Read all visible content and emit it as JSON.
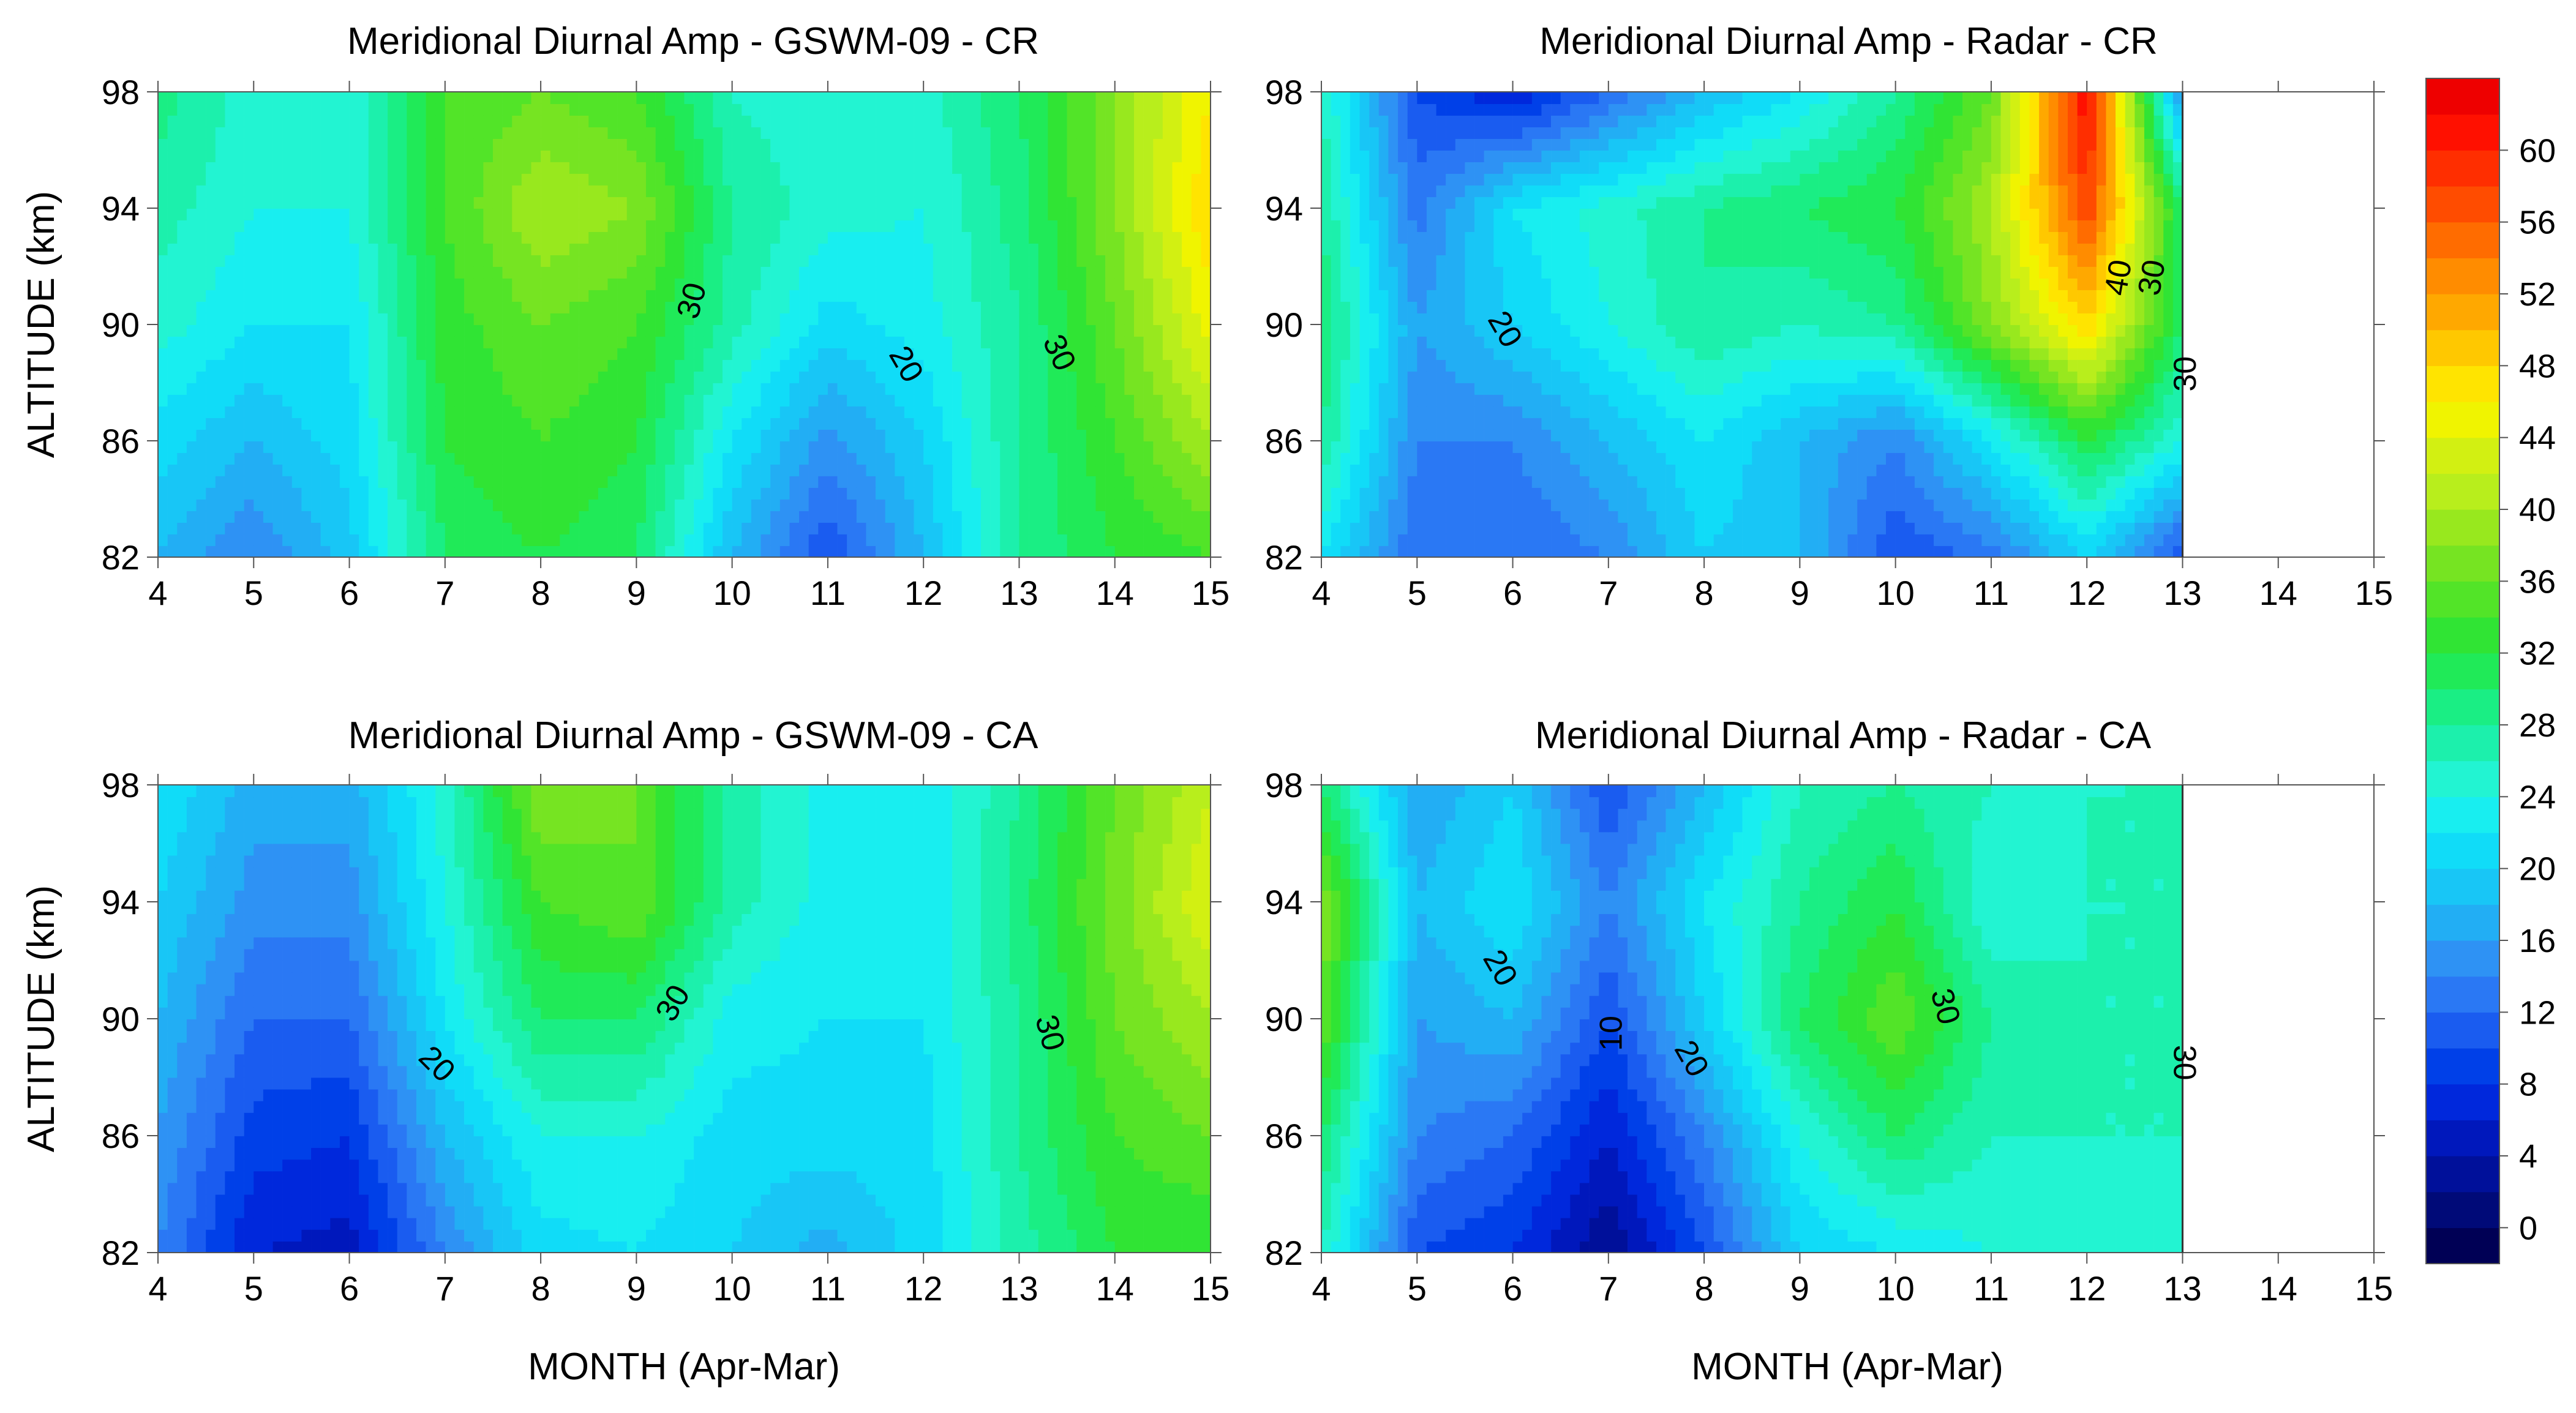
{
  "chart_data": [
    {
      "type": "filled-contour",
      "title": "Meridional Diurnal Amp - GSWM-09 - CR",
      "ylabel": "ALTITUDE (km)",
      "xlabel": "",
      "x_ticks": [
        "4",
        "5",
        "6",
        "7",
        "8",
        "9",
        "10",
        "11",
        "12",
        "13",
        "14",
        "15"
      ],
      "y_ticks": [
        "82",
        "86",
        "90",
        "94",
        "98"
      ],
      "xlim": [
        4,
        15
      ],
      "ylim": [
        82,
        98
      ],
      "x": [
        4,
        5,
        6,
        7,
        8,
        9,
        10,
        11,
        12,
        13,
        14,
        15
      ],
      "y": [
        82,
        86,
        90,
        94,
        98
      ],
      "z": [
        [
          18,
          14,
          19,
          30,
          32,
          30,
          18,
          10,
          18,
          28,
          32,
          34
        ],
        [
          21,
          18,
          21,
          32,
          34,
          32,
          22,
          15,
          20,
          28,
          34,
          40
        ],
        [
          25,
          22,
          22,
          33,
          36,
          34,
          27,
          21,
          23,
          28,
          36,
          45
        ],
        [
          27,
          24,
          24,
          34,
          40,
          38,
          28,
          25,
          24,
          29,
          38,
          48
        ],
        [
          29,
          25,
          24,
          34,
          36,
          34,
          26,
          24,
          25,
          30,
          38,
          46
        ]
      ],
      "contour_labels": [
        {
          "text": "30",
          "x": 9.6,
          "y": 90.8,
          "angle": -75
        },
        {
          "text": "20",
          "x": 11.8,
          "y": 88.6,
          "angle": 60
        },
        {
          "text": "30",
          "x": 13.4,
          "y": 89.0,
          "angle": 65
        }
      ]
    },
    {
      "type": "filled-contour",
      "title": "Meridional Diurnal Amp - Radar - CR",
      "ylabel": "",
      "xlabel": "",
      "x_ticks": [
        "4",
        "5",
        "6",
        "7",
        "8",
        "9",
        "10",
        "11",
        "12",
        "13",
        "14",
        "15"
      ],
      "y_ticks": [
        "82",
        "86",
        "90",
        "94",
        "98"
      ],
      "xlim": [
        4,
        15
      ],
      "ylim": [
        82,
        98
      ],
      "x": [
        4,
        5,
        6,
        7,
        8,
        9,
        10,
        11,
        12,
        13
      ],
      "y": [
        82,
        86,
        90,
        94,
        98
      ],
      "z": [
        [
          22,
          12,
          12,
          14,
          20,
          18,
          10,
          13,
          20,
          10
        ],
        [
          28,
          14,
          14,
          18,
          22,
          18,
          14,
          22,
          32,
          24
        ],
        [
          30,
          16,
          20,
          24,
          28,
          26,
          28,
          38,
          48,
          30
        ],
        [
          28,
          13,
          22,
          25,
          28,
          30,
          32,
          40,
          58,
          30
        ],
        [
          26,
          10,
          6,
          12,
          18,
          22,
          28,
          36,
          62,
          14
        ]
      ],
      "contour_labels": [
        {
          "text": "20",
          "x": 5.9,
          "y": 89.8,
          "angle": 60
        },
        {
          "text": "40",
          "x": 12.35,
          "y": 91.6,
          "angle": -80
        },
        {
          "text": "30",
          "x": 12.7,
          "y": 91.6,
          "angle": -80
        },
        {
          "text": "30",
          "x": 13.05,
          "y": 88.3,
          "angle": -90
        }
      ]
    },
    {
      "type": "filled-contour",
      "title": "Meridional Diurnal Amp - GSWM-09 - CA",
      "ylabel": "ALTITUDE (km)",
      "xlabel": "MONTH (Apr-Mar)",
      "x_ticks": [
        "4",
        "5",
        "6",
        "7",
        "8",
        "9",
        "10",
        "11",
        "12",
        "13",
        "14",
        "15"
      ],
      "y_ticks": [
        "82",
        "86",
        "90",
        "94",
        "98"
      ],
      "xlim": [
        4,
        15
      ],
      "ylim": [
        82,
        98
      ],
      "x": [
        4,
        5,
        6,
        7,
        8,
        9,
        10,
        11,
        12,
        13,
        14,
        15
      ],
      "y": [
        82,
        86,
        90,
        94,
        98
      ],
      "z": [
        [
          14,
          6,
          5,
          14,
          21,
          22,
          20,
          17,
          21,
          27,
          32,
          32
        ],
        [
          16,
          9,
          8,
          18,
          24,
          24,
          21,
          21,
          21,
          28,
          34,
          36
        ],
        [
          18,
          12,
          12,
          22,
          30,
          30,
          23,
          22,
          22,
          28,
          36,
          40
        ],
        [
          20,
          15,
          15,
          24,
          34,
          36,
          27,
          23,
          22,
          29,
          37,
          44
        ],
        [
          22,
          17,
          17,
          25,
          38,
          36,
          27,
          23,
          22,
          28,
          36,
          42
        ]
      ],
      "contour_labels": [
        {
          "text": "30",
          "x": 9.4,
          "y": 90.5,
          "angle": -60
        },
        {
          "text": "20",
          "x": 6.9,
          "y": 88.4,
          "angle": 45
        },
        {
          "text": "30",
          "x": 13.3,
          "y": 89.5,
          "angle": 75
        }
      ]
    },
    {
      "type": "filled-contour",
      "title": "Meridional Diurnal Amp - Radar - CA",
      "ylabel": "",
      "xlabel": "MONTH (Apr-Mar)",
      "x_ticks": [
        "4",
        "5",
        "6",
        "7",
        "8",
        "9",
        "10",
        "11",
        "12",
        "13",
        "14",
        "15"
      ],
      "y_ticks": [
        "82",
        "86",
        "90",
        "94",
        "98"
      ],
      "xlim": [
        4,
        15
      ],
      "ylim": [
        82,
        98
      ],
      "x": [
        4,
        5,
        6,
        7,
        8,
        9,
        10,
        11,
        12,
        13
      ],
      "y": [
        82,
        86,
        90,
        94,
        98
      ],
      "z": [
        [
          26,
          10,
          8,
          2,
          10,
          20,
          22,
          24,
          24,
          24
        ],
        [
          30,
          14,
          12,
          6,
          14,
          24,
          30,
          26,
          26,
          26
        ],
        [
          36,
          16,
          18,
          10,
          20,
          30,
          36,
          28,
          26,
          26
        ],
        [
          38,
          18,
          22,
          14,
          22,
          28,
          32,
          24,
          26,
          26
        ],
        [
          30,
          16,
          20,
          10,
          18,
          26,
          28,
          26,
          26,
          26
        ]
      ],
      "contour_labels": [
        {
          "text": "20",
          "x": 5.85,
          "y": 91.7,
          "angle": 60
        },
        {
          "text": "10",
          "x": 7.05,
          "y": 89.5,
          "angle": -90
        },
        {
          "text": "20",
          "x": 7.85,
          "y": 88.6,
          "angle": 60
        },
        {
          "text": "30",
          "x": 10.5,
          "y": 90.4,
          "angle": 75
        },
        {
          "text": "30",
          "x": 13.0,
          "y": 88.5,
          "angle": 90
        }
      ]
    }
  ],
  "colorbar": {
    "min": -2,
    "max": 64,
    "step": 2,
    "ticks": [
      "0",
      "4",
      "8",
      "12",
      "16",
      "20",
      "24",
      "28",
      "32",
      "36",
      "40",
      "44",
      "48",
      "52",
      "56",
      "60"
    ],
    "colors": [
      "#000055",
      "#000a78",
      "#00109a",
      "#0018bc",
      "#0028dc",
      "#0040e8",
      "#1a5cf0",
      "#2a78f4",
      "#2e92f4",
      "#22aef4",
      "#18c6f6",
      "#10dcf8",
      "#18eef0",
      "#22f4d2",
      "#1cf0ac",
      "#1aee84",
      "#20ea58",
      "#30e434",
      "#52e428",
      "#76e422",
      "#98e81e",
      "#b8ee1c",
      "#d2f012",
      "#f0f400",
      "#ffe400",
      "#ffc800",
      "#ffa800",
      "#ff8c00",
      "#ff6c00",
      "#ff4c00",
      "#ff2e00",
      "#ff1000",
      "#ee0000"
    ]
  }
}
